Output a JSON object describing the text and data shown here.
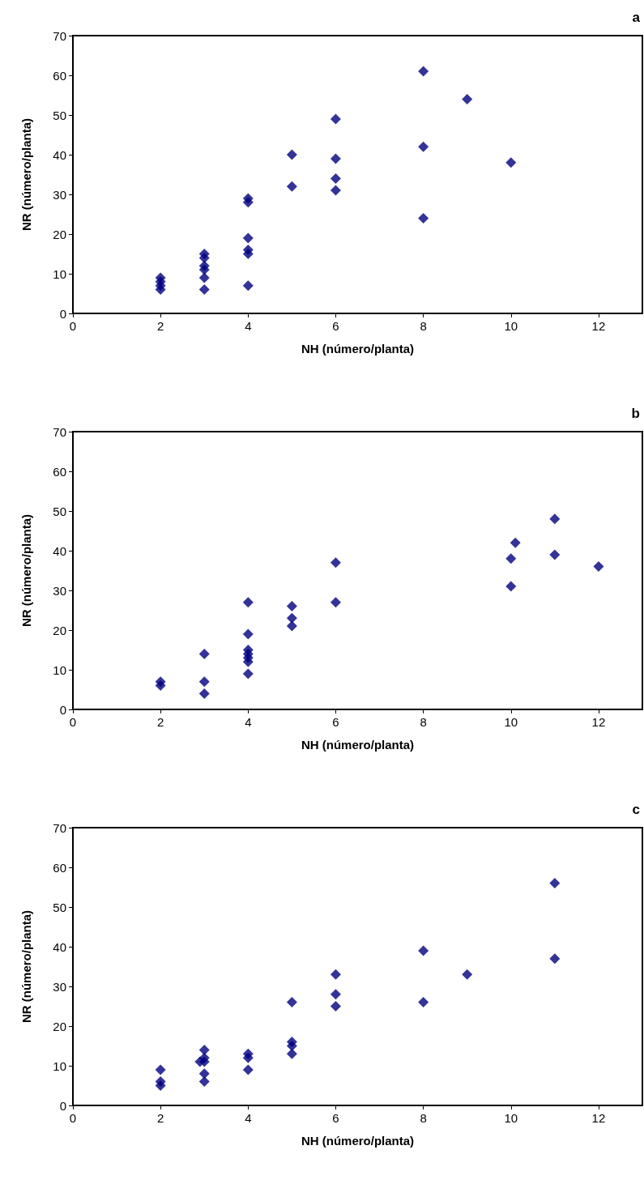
{
  "chart_data": [
    {
      "type": "scatter",
      "title": "a",
      "xlabel": "NH (número/planta)",
      "ylabel": "NR (número/planta)",
      "marker": "diamond",
      "grid": false,
      "xlim": [
        0,
        13
      ],
      "xticks": [
        0,
        2,
        4,
        6,
        8,
        10,
        12
      ],
      "ylim": [
        0,
        70
      ],
      "yticks": [
        0,
        10,
        20,
        30,
        40,
        50,
        60,
        70
      ],
      "series": [
        {
          "color": "#000080",
          "x": [
            2,
            2,
            2,
            2,
            3,
            3,
            3,
            3,
            3,
            3,
            4,
            4,
            4,
            4,
            4,
            4,
            5,
            5,
            6,
            6,
            6,
            6,
            8,
            8,
            8,
            9,
            10
          ],
          "values": [
            6,
            7,
            8,
            9,
            6,
            9,
            11,
            12,
            14,
            15,
            7,
            15,
            16,
            19,
            28,
            29,
            32,
            40,
            31,
            34,
            39,
            49,
            24,
            42,
            61,
            54,
            38
          ]
        }
      ]
    },
    {
      "type": "scatter",
      "title": "b",
      "xlabel": "NH (número/planta)",
      "ylabel": "NR (número/planta)",
      "marker": "diamond",
      "grid": false,
      "xlim": [
        0,
        13
      ],
      "xticks": [
        0,
        2,
        4,
        6,
        8,
        10,
        12
      ],
      "ylim": [
        0,
        70
      ],
      "yticks": [
        0,
        10,
        20,
        30,
        40,
        50,
        60,
        70
      ],
      "series": [
        {
          "color": "#000080",
          "x": [
            2,
            2,
            3,
            3,
            3,
            4,
            4,
            4,
            4,
            4,
            4,
            4,
            5,
            5,
            5,
            6,
            6,
            10,
            10,
            10.1,
            11,
            11,
            12
          ],
          "values": [
            6,
            7,
            4,
            7,
            14,
            9,
            12,
            13,
            14,
            15,
            19,
            27,
            21,
            23,
            26,
            27,
            37,
            31,
            38,
            42,
            39,
            48,
            36
          ]
        }
      ]
    },
    {
      "type": "scatter",
      "title": "c",
      "xlabel": "NH (número/planta)",
      "ylabel": "NR (número/planta)",
      "marker": "diamond",
      "grid": false,
      "xlim": [
        0,
        13
      ],
      "xticks": [
        0,
        2,
        4,
        6,
        8,
        10,
        12
      ],
      "ylim": [
        0,
        70
      ],
      "yticks": [
        0,
        10,
        20,
        30,
        40,
        50,
        60,
        70
      ],
      "series": [
        {
          "color": "#000080",
          "x": [
            2,
            2,
            2,
            2.9,
            3,
            3,
            3,
            3,
            3,
            4,
            4,
            4,
            5,
            5,
            5,
            5,
            6,
            6,
            6,
            8,
            8,
            9,
            11,
            11
          ],
          "values": [
            5,
            6,
            9,
            11,
            6,
            8,
            11,
            12,
            14,
            9,
            12,
            13,
            13,
            15,
            16,
            26,
            25,
            28,
            33,
            26,
            39,
            33,
            37,
            56
          ]
        }
      ]
    }
  ]
}
